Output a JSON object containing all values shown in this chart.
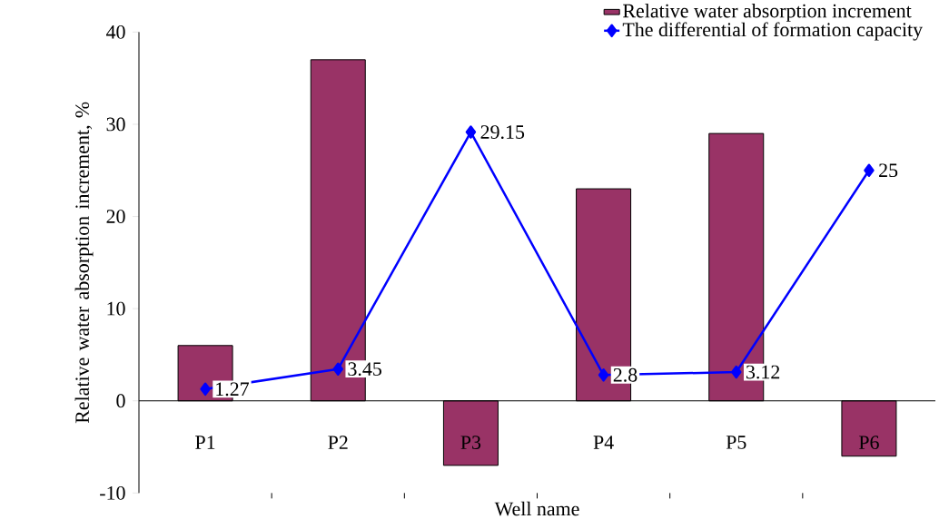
{
  "chart_data": {
    "type": "bar",
    "xlabel": "Well name",
    "ylabel": "Relative water absorption increment, %",
    "categories": [
      "P1",
      "P2",
      "P3",
      "P4",
      "P5",
      "P6"
    ],
    "ylim": [
      -10,
      40
    ],
    "yticks": [
      -10,
      0,
      10,
      20,
      30,
      40
    ],
    "legend": "top right",
    "grid": false,
    "series": [
      {
        "name": "Relative water absorption increment",
        "color": "#993366",
        "values": [
          6,
          37,
          -7,
          23,
          29,
          -6
        ]
      },
      {
        "name": "The differential of formation capacity",
        "type": "line",
        "color": "#0000ff",
        "marker": "diamond",
        "values": [
          1.27,
          3.45,
          29.15,
          2.8,
          3.12,
          25
        ],
        "value_labels": [
          "1.27",
          "3.45",
          "29.15",
          "2.8",
          "3.12",
          "25"
        ]
      }
    ]
  }
}
